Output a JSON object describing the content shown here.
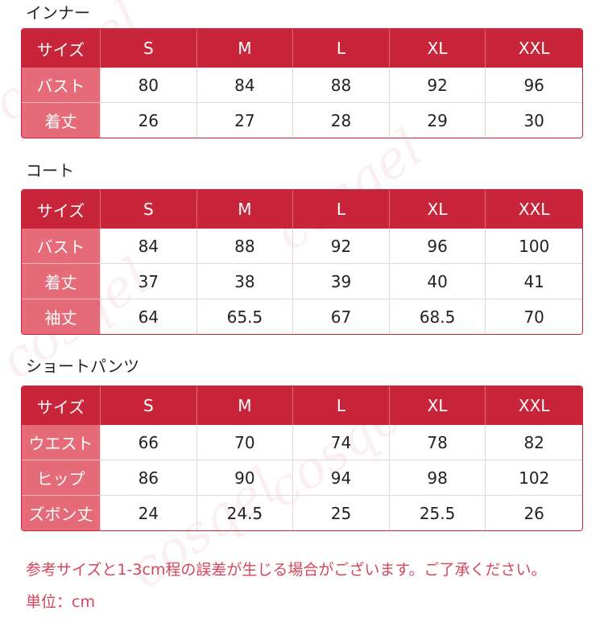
{
  "tables": [
    {
      "title": "インナー",
      "header": [
        "サイズ",
        "S",
        "M",
        "L",
        "XL",
        "XXL"
      ],
      "rows": [
        {
          "label": "バスト",
          "values": [
            "80",
            "84",
            "88",
            "92",
            "96"
          ]
        },
        {
          "label": "着丈",
          "values": [
            "26",
            "27",
            "28",
            "29",
            "30"
          ]
        }
      ]
    },
    {
      "title": "コート",
      "header": [
        "サイズ",
        "S",
        "M",
        "L",
        "XL",
        "XXL"
      ],
      "rows": [
        {
          "label": "バスト",
          "values": [
            "84",
            "88",
            "92",
            "96",
            "100"
          ]
        },
        {
          "label": "着丈",
          "values": [
            "37",
            "38",
            "39",
            "40",
            "41"
          ]
        },
        {
          "label": "袖丈",
          "values": [
            "64",
            "65.5",
            "67",
            "68.5",
            "70"
          ]
        }
      ]
    },
    {
      "title": "ショートパンツ",
      "header": [
        "サイズ",
        "S",
        "M",
        "L",
        "XL",
        "XXL"
      ],
      "rows": [
        {
          "label": "ウエスト",
          "values": [
            "66",
            "70",
            "74",
            "78",
            "82"
          ]
        },
        {
          "label": "ヒップ",
          "values": [
            "86",
            "90",
            "94",
            "98",
            "102"
          ]
        },
        {
          "label": "ズボン丈",
          "values": [
            "24",
            "24.5",
            "25",
            "25.5",
            "26"
          ]
        }
      ]
    }
  ],
  "notes": {
    "disclaimer": "参考サイズと1-3cm程の誤差が生じる場合がございます。ご了承ください。",
    "unit": "単位：cm"
  },
  "watermark": "cosqel",
  "colors": {
    "header_bg": "#c8243a",
    "label_bg": "#e56b78",
    "note_text": "#d4475a"
  }
}
